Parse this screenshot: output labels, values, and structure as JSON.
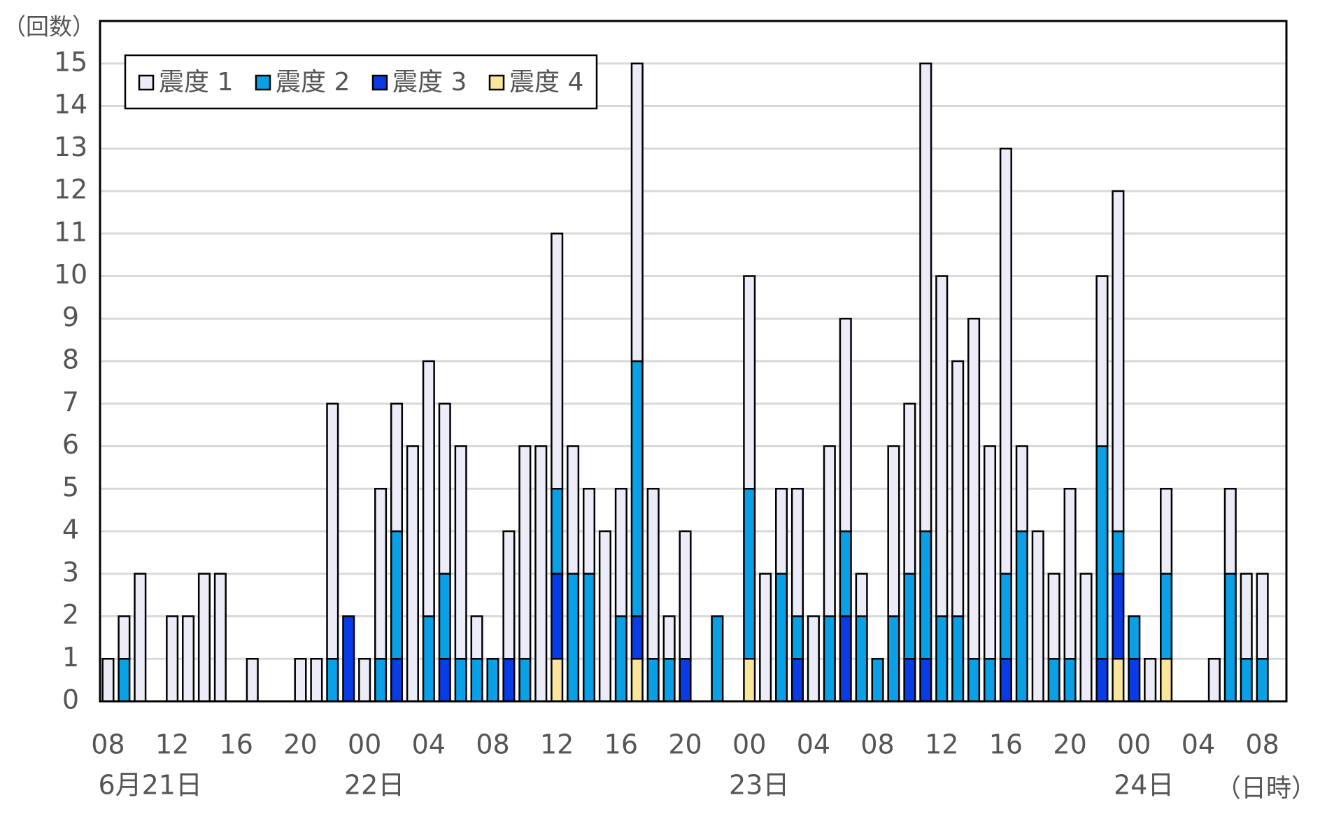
{
  "chart_data": {
    "type": "stacked_bar",
    "y_label": "（回数）",
    "x_label": "（日時）",
    "categories": [
      "08",
      null,
      null,
      null,
      "12",
      null,
      null,
      null,
      "16",
      null,
      null,
      null,
      "20",
      null,
      null,
      null,
      "00",
      null,
      null,
      null,
      "04",
      null,
      null,
      null,
      "08",
      null,
      null,
      null,
      "12",
      null,
      null,
      null,
      "16",
      null,
      null,
      null,
      "20",
      null,
      null,
      null,
      "00",
      null,
      null,
      null,
      "04",
      null,
      null,
      null,
      "08",
      null,
      null,
      null,
      "12",
      null,
      null,
      null,
      "16",
      null,
      null,
      null,
      "20",
      null,
      null,
      null,
      "00",
      null,
      null,
      null,
      "04",
      null,
      null,
      null,
      "08"
    ],
    "day_labels": [
      "6月21日",
      null,
      null,
      null,
      null,
      null,
      null,
      null,
      null,
      null,
      null,
      null,
      null,
      null,
      null,
      null,
      "22日",
      null,
      null,
      null,
      null,
      null,
      null,
      null,
      null,
      null,
      null,
      null,
      null,
      null,
      null,
      null,
      null,
      null,
      null,
      null,
      null,
      null,
      null,
      null,
      "23日",
      null,
      null,
      null,
      null,
      null,
      null,
      null,
      null,
      null,
      null,
      null,
      null,
      null,
      null,
      null,
      null,
      null,
      null,
      null,
      null,
      null,
      null,
      null,
      "24日",
      null,
      null,
      null,
      null,
      null,
      null,
      null,
      null
    ],
    "series": [
      {
        "name": "震度 1",
        "color": "#ececf8",
        "values": [
          1,
          1,
          3,
          0,
          2,
          2,
          3,
          3,
          0,
          1,
          0,
          0,
          1,
          1,
          6,
          0,
          1,
          4,
          3,
          6,
          6,
          4,
          5,
          1,
          0,
          3,
          5,
          6,
          6,
          3,
          2,
          4,
          3,
          7,
          4,
          1,
          3,
          0,
          0,
          0,
          5,
          3,
          2,
          3,
          2,
          4,
          5,
          1,
          0,
          4,
          4,
          11,
          8,
          6,
          8,
          5,
          10,
          2,
          4,
          2,
          4,
          3,
          4,
          8,
          0,
          1,
          2,
          0,
          0,
          1,
          2,
          2,
          2
        ]
      },
      {
        "name": "震度 2",
        "color": "#0aa0e6",
        "values": [
          0,
          1,
          0,
          0,
          0,
          0,
          0,
          0,
          0,
          0,
          0,
          0,
          0,
          0,
          1,
          0,
          0,
          1,
          3,
          0,
          2,
          2,
          1,
          1,
          1,
          0,
          1,
          0,
          2,
          3,
          3,
          0,
          2,
          6,
          1,
          1,
          0,
          0,
          2,
          0,
          4,
          0,
          3,
          1,
          0,
          2,
          2,
          2,
          1,
          2,
          2,
          3,
          2,
          2,
          1,
          1,
          2,
          4,
          0,
          1,
          1,
          0,
          5,
          1,
          1,
          0,
          2,
          0,
          0,
          0,
          3,
          1,
          1
        ]
      },
      {
        "name": "震度 3",
        "color": "#0a3ce6",
        "values": [
          0,
          0,
          0,
          0,
          0,
          0,
          0,
          0,
          0,
          0,
          0,
          0,
          0,
          0,
          0,
          2,
          0,
          0,
          1,
          0,
          0,
          1,
          0,
          0,
          0,
          1,
          0,
          0,
          2,
          0,
          0,
          0,
          0,
          1,
          0,
          0,
          1,
          0,
          0,
          0,
          0,
          0,
          0,
          1,
          0,
          0,
          2,
          0,
          0,
          0,
          1,
          1,
          0,
          0,
          0,
          0,
          1,
          0,
          0,
          0,
          0,
          0,
          1,
          2,
          1,
          0,
          0,
          0,
          0,
          0,
          0,
          0,
          0
        ]
      },
      {
        "name": "震度 4",
        "color": "#fae69a",
        "values": [
          0,
          0,
          0,
          0,
          0,
          0,
          0,
          0,
          0,
          0,
          0,
          0,
          0,
          0,
          0,
          0,
          0,
          0,
          0,
          0,
          0,
          0,
          0,
          0,
          0,
          0,
          0,
          0,
          1,
          0,
          0,
          0,
          0,
          1,
          0,
          0,
          0,
          0,
          0,
          0,
          1,
          0,
          0,
          0,
          0,
          0,
          0,
          0,
          0,
          0,
          0,
          0,
          0,
          0,
          0,
          0,
          0,
          0,
          0,
          0,
          0,
          0,
          0,
          1,
          0,
          0,
          1,
          0,
          0,
          0,
          0,
          0,
          0
        ]
      }
    ],
    "ylim": [
      0,
      16
    ],
    "yticks": [
      0,
      1,
      2,
      3,
      4,
      5,
      6,
      7,
      8,
      9,
      10,
      11,
      12,
      13,
      14,
      15
    ],
    "grid": true,
    "legend": "top-left"
  }
}
